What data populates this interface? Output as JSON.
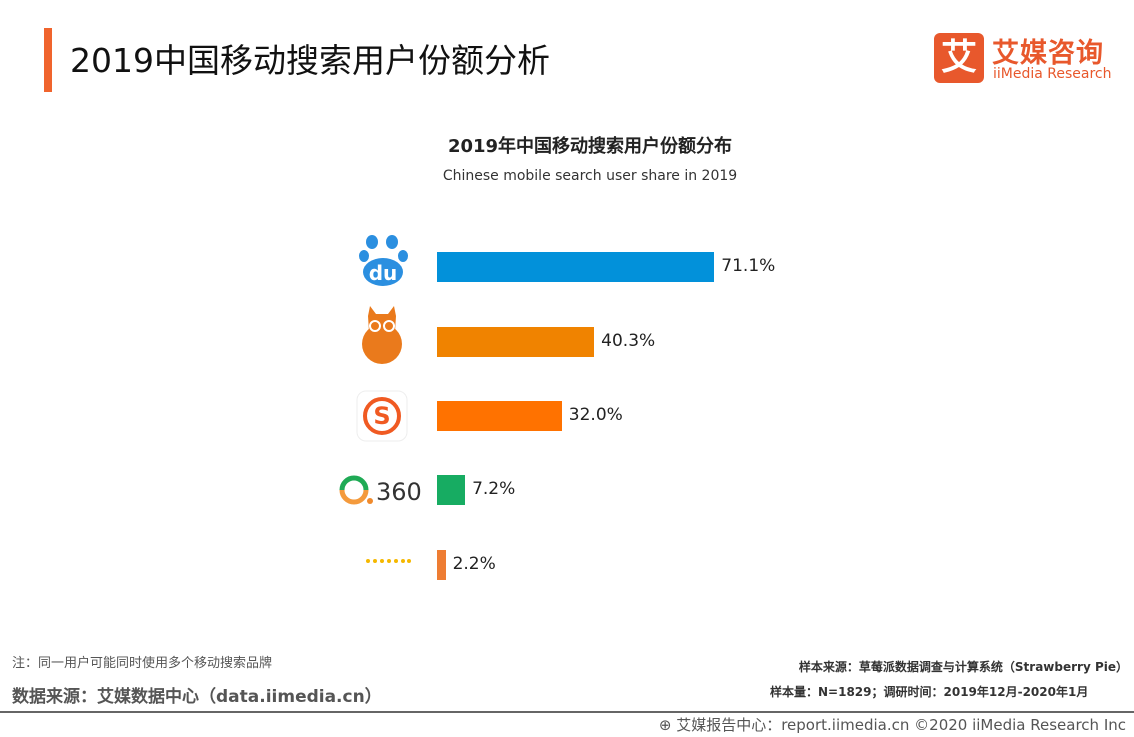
{
  "header": {
    "title": "2019中国移动搜索用户份额分析",
    "logo_cn": "艾媒咨询",
    "logo_en": "iiMedia Research",
    "logo_mark": "艾"
  },
  "chart_data": {
    "type": "bar",
    "orientation": "horizontal",
    "title": "2019年中国移动搜索用户份额分布",
    "subtitle": "Chinese mobile search user share in 2019",
    "categories": [
      "baidu-logo-icon",
      "uc-alpaca-logo-icon",
      "sogou-logo-icon",
      "360-logo-icon",
      "other-dots-icon"
    ],
    "values": [
      71.1,
      40.3,
      32.0,
      7.2,
      2.2
    ],
    "labels": [
      "71.1%",
      "40.3%",
      "32.0%",
      "7.2%",
      "2.2%"
    ],
    "colors": [
      "#0291da",
      "#f08300",
      "#ff7200",
      "#17ac62",
      "#ee7d33"
    ],
    "logo_text_360": "360",
    "unit": "%",
    "grid": false
  },
  "footer": {
    "note": "注：同一用户可能同时使用多个移动搜索品牌",
    "source": "数据来源：艾媒数据中心（data.iimedia.cn）",
    "sample_source": "样本来源：草莓派数据调查与计算系统（Strawberry Pie）",
    "sample_size": "样本量：N=1829；调研时间：2019年12月-2020年1月",
    "copyright": "艾媒报告中心：report.iimedia.cn  ©2020  iiMedia Research Inc"
  }
}
